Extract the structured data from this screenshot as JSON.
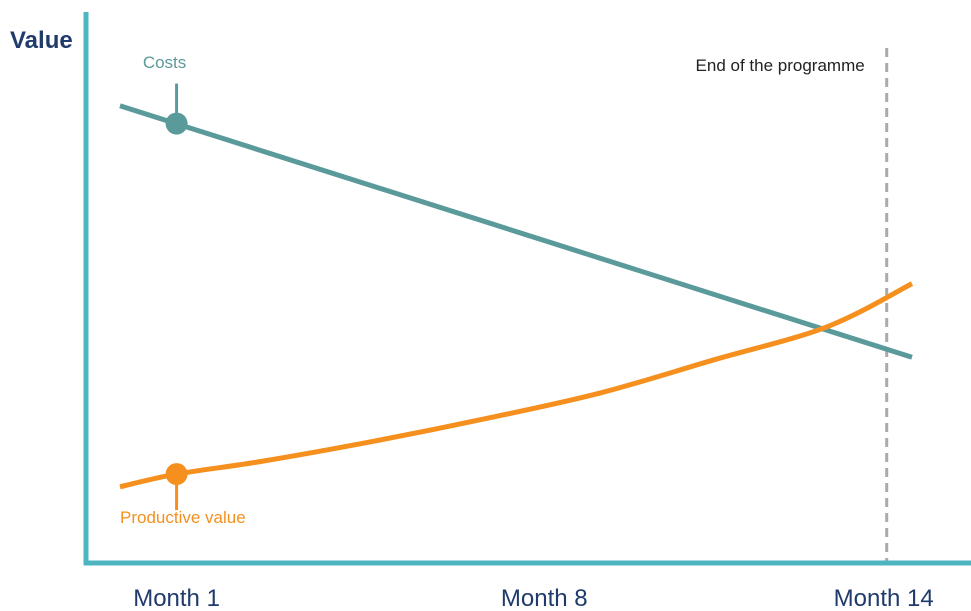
{
  "chart_data": {
    "type": "line",
    "title": "",
    "ylabel": "Value",
    "xlabel": "",
    "categories": [
      "Month 1",
      "Month 8",
      "Month 14"
    ],
    "x_range": [
      0,
      14.5
    ],
    "y_range": [
      0,
      100
    ],
    "series": [
      {
        "name": "Costs",
        "color": "#5b9a9a",
        "shape": "linear",
        "points": [
          [
            0.5,
            90
          ],
          [
            14.5,
            40.5
          ]
        ],
        "marker": [
          1.5,
          86.5
        ]
      },
      {
        "name": "Productive value",
        "color": "#f5901e",
        "shape": "curve",
        "points": [
          [
            0.5,
            15
          ],
          [
            1.5,
            17.5
          ],
          [
            3,
            20
          ],
          [
            5,
            24
          ],
          [
            7,
            28.5
          ],
          [
            9,
            33.5
          ],
          [
            11,
            40
          ],
          [
            13,
            46.5
          ],
          [
            14.5,
            55
          ]
        ],
        "marker": [
          1.5,
          17.5
        ]
      }
    ],
    "annotations": [
      {
        "text": "End of the programme",
        "x": 14,
        "style": "dashed-vertical-line",
        "color": "#aaaaaa"
      }
    ],
    "grid": false,
    "legend": "none",
    "axis_color": "#4db5c0",
    "text_color": "#1f3a6b",
    "annotation_text_color": "#222222"
  }
}
